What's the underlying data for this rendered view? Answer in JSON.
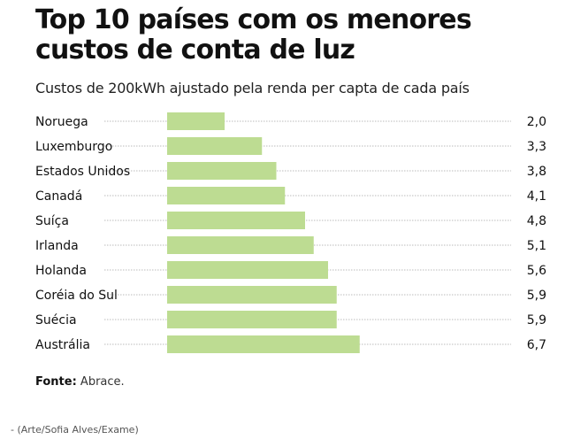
{
  "title": "Top 10 países com os menores custos de conta de luz",
  "subtitle": "Custos de 200kWh ajustado pela renda per capta de cada país",
  "source_label": "Fonte:",
  "source_value": "Abrace.",
  "credit": "- (Arte/Sofia Alves/Exame)",
  "chart_data": {
    "type": "bar",
    "orientation": "horizontal",
    "title": "Top 10 países com os menores custos de conta de luz",
    "subtitle": "Custos de 200kWh ajustado pela renda per capta de cada país",
    "categories": [
      "Noruega",
      "Luxemburgo",
      "Estados Unidos",
      "Canadá",
      "Suíça",
      "Irlanda",
      "Holanda",
      "Coréia do Sul",
      "Suécia",
      "Austrália"
    ],
    "values": [
      2.0,
      3.3,
      3.8,
      4.1,
      4.8,
      5.1,
      5.6,
      5.9,
      5.9,
      6.7
    ],
    "labels": [
      "2,0",
      "3,3",
      "3,8",
      "4,1",
      "4,8",
      "5,1",
      "5,6",
      "5,9",
      "5,9",
      "6,7"
    ],
    "bar_color": "#bddc92",
    "xlim": [
      0,
      14
    ]
  }
}
